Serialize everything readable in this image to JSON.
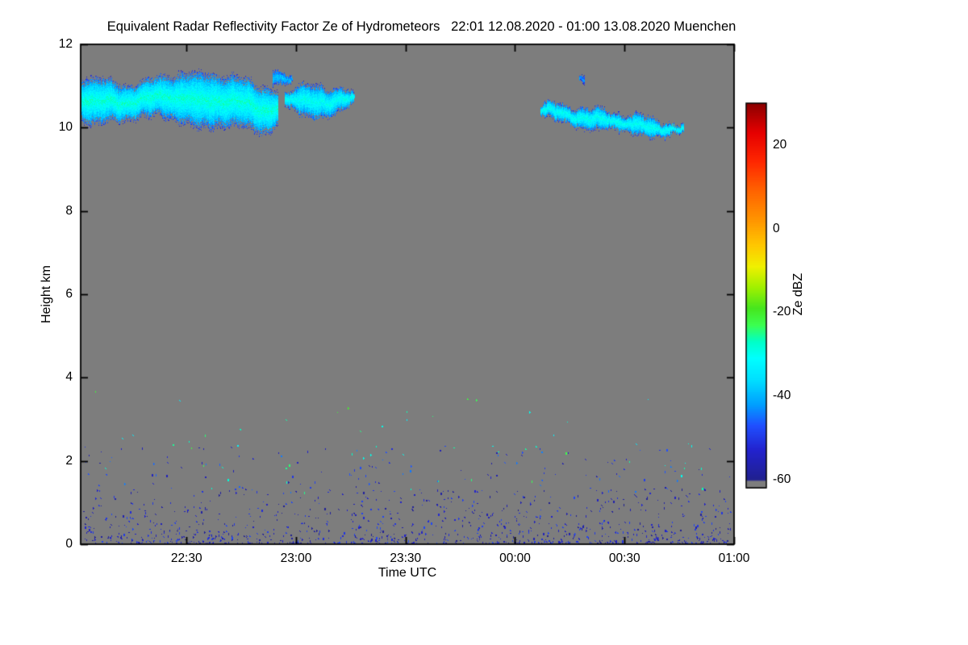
{
  "chart_data": {
    "type": "heatmap",
    "title": "Equivalent Radar Reflectivity Factor Ze of Hydrometeors   22:01 12.08.2020 - 01:00 13.08.2020 Muenchen",
    "xlabel": "Time UTC",
    "ylabel": "Height km",
    "x_axis": {
      "range_minutes": [
        0,
        179
      ],
      "start_time": "22:01",
      "end_time": "01:00",
      "ticks": [
        {
          "label": "22:30",
          "minute": 29
        },
        {
          "label": "23:00",
          "minute": 59
        },
        {
          "label": "23:30",
          "minute": 89
        },
        {
          "label": "00:00",
          "minute": 119
        },
        {
          "label": "00:30",
          "minute": 149
        },
        {
          "label": "01:00",
          "minute": 179
        }
      ]
    },
    "y_axis": {
      "range_km": [
        0,
        12
      ],
      "ticks": [
        0,
        2,
        4,
        6,
        8,
        10,
        12
      ]
    },
    "colorbar": {
      "label": "Ze dBZ",
      "range_dbz": [
        -62,
        30
      ],
      "ticks": [
        20,
        0,
        -20,
        -40,
        -60
      ],
      "stops": [
        [
          -62,
          "#7d7d7d"
        ],
        [
          -60.4,
          "#7d7d7d"
        ],
        [
          -60,
          "#20208f"
        ],
        [
          -53,
          "#2222cd"
        ],
        [
          -47,
          "#2050ff"
        ],
        [
          -42,
          "#00a0ff"
        ],
        [
          -36,
          "#00e0ff"
        ],
        [
          -31,
          "#00ffff"
        ],
        [
          -27,
          "#00ffc8"
        ],
        [
          -23,
          "#3cff50"
        ],
        [
          -19,
          "#46e61e"
        ],
        [
          -14,
          "#a0f000"
        ],
        [
          -9,
          "#f0f000"
        ],
        [
          -4,
          "#ffc800"
        ],
        [
          2,
          "#ff9600"
        ],
        [
          9,
          "#ff6400"
        ],
        [
          16,
          "#ff2800"
        ],
        [
          23,
          "#e60000"
        ],
        [
          30,
          "#8c0000"
        ]
      ]
    },
    "background_color": "#7d7d7d",
    "axis_color": "#000000",
    "clouds": [
      {
        "name": "cirrus-band-1",
        "profile": [
          [
            0,
            10.05,
            11.25
          ],
          [
            4,
            10.0,
            11.2
          ],
          [
            8,
            10.15,
            11.15
          ],
          [
            12,
            10.2,
            11.05
          ],
          [
            16,
            10.25,
            11.1
          ],
          [
            20,
            10.25,
            11.2
          ],
          [
            24,
            10.15,
            11.3
          ],
          [
            28,
            10.1,
            11.35
          ],
          [
            32,
            10.05,
            11.3
          ],
          [
            36,
            10.0,
            11.35
          ],
          [
            40,
            9.95,
            11.3
          ],
          [
            44,
            10.0,
            11.2
          ],
          [
            48,
            9.9,
            11.1
          ],
          [
            51,
            9.85,
            11.05
          ],
          [
            54,
            10.15,
            10.9
          ]
        ],
        "core_dbz": -28,
        "edge_dbz": -52
      },
      {
        "name": "cirrus-hook",
        "profile": [
          [
            52.5,
            11.05,
            11.3
          ],
          [
            55,
            11.0,
            11.35
          ],
          [
            58,
            11.05,
            11.25
          ]
        ],
        "core_dbz": -38,
        "edge_dbz": -52
      },
      {
        "name": "cirrus-band-2",
        "profile": [
          [
            56,
            10.45,
            10.85
          ],
          [
            60,
            10.3,
            11.0
          ],
          [
            64,
            10.25,
            11.05
          ],
          [
            68,
            10.3,
            11.0
          ],
          [
            72,
            10.4,
            10.95
          ],
          [
            75,
            10.55,
            10.75
          ]
        ],
        "core_dbz": -30,
        "edge_dbz": -52
      },
      {
        "name": "speck-high",
        "profile": [
          [
            136.5,
            11.1,
            11.3
          ],
          [
            138,
            11.05,
            11.32
          ]
        ],
        "core_dbz": -42,
        "edge_dbz": -55
      },
      {
        "name": "cirrus-band-3",
        "profile": [
          [
            126,
            10.3,
            10.55
          ],
          [
            129,
            10.15,
            10.6
          ],
          [
            133,
            10.1,
            10.55
          ],
          [
            137,
            10.0,
            10.5
          ],
          [
            141,
            10.0,
            10.45
          ],
          [
            145,
            9.95,
            10.4
          ],
          [
            149,
            9.85,
            10.35
          ],
          [
            153,
            9.8,
            10.3
          ],
          [
            157,
            9.8,
            10.2
          ],
          [
            161,
            9.85,
            10.15
          ],
          [
            165,
            9.9,
            10.05
          ]
        ],
        "core_dbz": -30,
        "edge_dbz": -52
      }
    ],
    "clutter": {
      "near_surface_count": 1000,
      "near_surface_max_height_km": 1.3,
      "near_surface_dbz": [
        -60,
        -48
      ],
      "low_level_count": 170,
      "low_level_height_km": [
        1.2,
        2.4
      ],
      "low_level_dbz": [
        -58,
        -44
      ],
      "elevated_count": 26,
      "elevated_height_km": [
        2.3,
        3.7
      ],
      "elevated_dbz": [
        -34,
        -20
      ]
    },
    "seed": 1234
  }
}
